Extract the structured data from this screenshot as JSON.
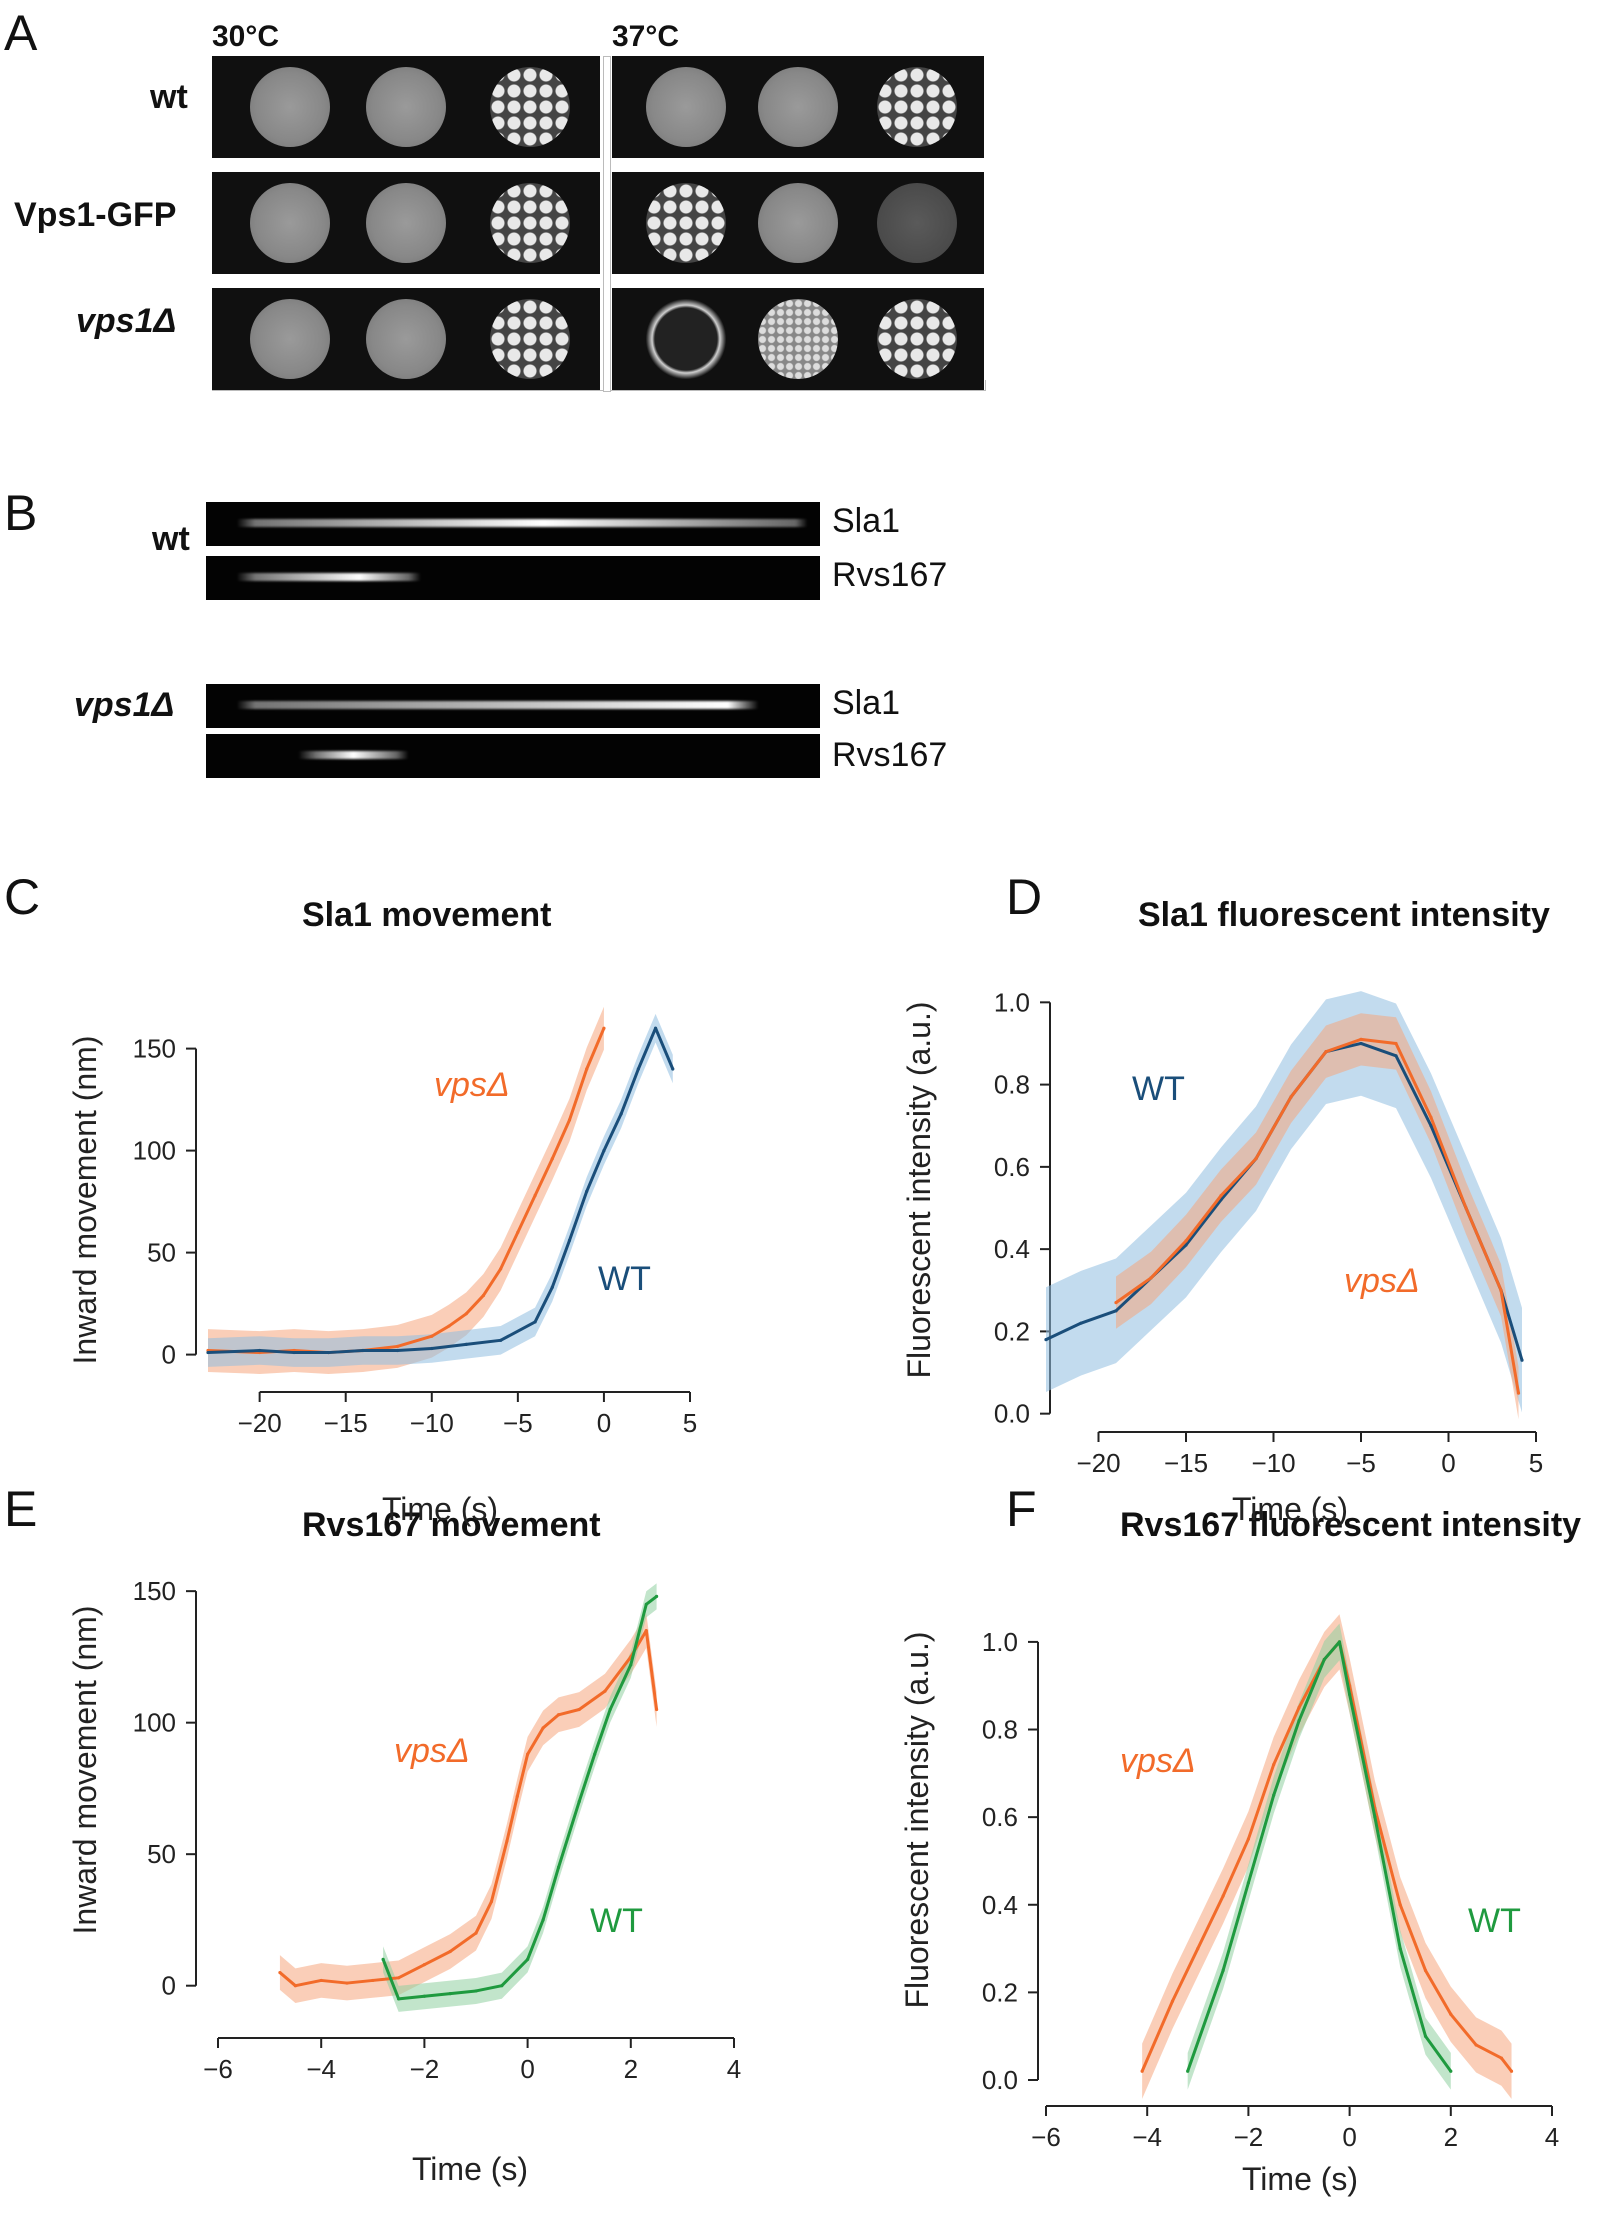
{
  "panel_letters": {
    "a": "A",
    "b": "B",
    "c": "C",
    "d": "D",
    "e": "E",
    "f": "F"
  },
  "panel_a": {
    "temps": [
      "30°C",
      "37°C"
    ],
    "strains": [
      "wt",
      "Vps1-GFP",
      "vps1Δ"
    ]
  },
  "panel_b": {
    "groups": [
      {
        "strain": "wt",
        "channels": [
          "Sla1",
          "Rvs167"
        ]
      },
      {
        "strain": "vps1Δ",
        "channels": [
          "Sla1",
          "Rvs167"
        ]
      }
    ]
  },
  "colors": {
    "vps": "#f26b2a",
    "wt_blue": "#1a4e7a",
    "wt_green": "#1f9a3f",
    "band_vps": "#f5a57e",
    "band_blue": "#8fbde0",
    "band_green": "#8fd0a0"
  },
  "chart_data": [
    {
      "panel": "C",
      "type": "line",
      "title": "Sla1 movement",
      "xlabel": "Time (s)",
      "ylabel": "Inward movement (nm)",
      "xticks": [
        -20,
        -15,
        -10,
        -5,
        0,
        5
      ],
      "yticks": [
        0,
        50,
        100,
        150
      ],
      "xlim": [
        -23,
        5
      ],
      "ylim": [
        -10,
        165
      ],
      "series": [
        {
          "name": "vpsΔ",
          "color": "#f26b2a",
          "x": [
            -23,
            -20,
            -18,
            -16,
            -14,
            -12,
            -10,
            -9,
            -8,
            -7,
            -6,
            -5,
            -4,
            -3,
            -2,
            -1,
            0
          ],
          "y": [
            2,
            1,
            2,
            1,
            2,
            4,
            9,
            14,
            20,
            29,
            42,
            60,
            78,
            96,
            115,
            140,
            160
          ]
        },
        {
          "name": "WT",
          "color": "#1a4e7a",
          "x": [
            -23,
            -20,
            -18,
            -16,
            -14,
            -12,
            -10,
            -8,
            -6,
            -4,
            -3,
            -2,
            -1,
            0,
            1,
            2,
            3,
            4
          ],
          "y": [
            1,
            2,
            1,
            1,
            2,
            2,
            3,
            5,
            7,
            16,
            33,
            56,
            80,
            100,
            118,
            140,
            160,
            140
          ]
        }
      ]
    },
    {
      "panel": "D",
      "type": "line",
      "title": "Sla1 fluorescent intensity",
      "xlabel": "Time (s)",
      "ylabel": "Fluorescent intensity (a.u.)",
      "xticks": [
        -20,
        -15,
        -10,
        -5,
        0,
        5
      ],
      "yticks": [
        0.0,
        0.2,
        0.4,
        0.6,
        0.8,
        1.0
      ],
      "xlim": [
        -23,
        5
      ],
      "ylim": [
        -0.03,
        1.03
      ],
      "series": [
        {
          "name": "WT",
          "color": "#1a4e7a",
          "x": [
            -23,
            -21,
            -19,
            -17,
            -15,
            -13,
            -11,
            -9,
            -7,
            -5,
            -3,
            -1,
            1,
            3,
            4.2
          ],
          "y": [
            0.18,
            0.22,
            0.25,
            0.33,
            0.41,
            0.52,
            0.62,
            0.77,
            0.88,
            0.9,
            0.87,
            0.7,
            0.5,
            0.3,
            0.13
          ]
        },
        {
          "name": "vpsΔ",
          "color": "#f26b2a",
          "x": [
            -19,
            -17,
            -15,
            -13,
            -11,
            -9,
            -7,
            -5,
            -3,
            -1,
            1,
            3,
            4
          ],
          "y": [
            0.27,
            0.33,
            0.42,
            0.53,
            0.62,
            0.77,
            0.88,
            0.91,
            0.9,
            0.72,
            0.5,
            0.3,
            0.05
          ]
        }
      ]
    },
    {
      "panel": "E",
      "type": "line",
      "title": "Rvs167 movement",
      "xlabel": "Time (s)",
      "ylabel": "Inward movement (nm)",
      "xticks": [
        -6,
        -4,
        -2,
        0,
        2,
        4
      ],
      "yticks": [
        0,
        50,
        100,
        150
      ],
      "xlim": [
        -6,
        4
      ],
      "ylim": [
        -10,
        155
      ],
      "series": [
        {
          "name": "vpsΔ",
          "color": "#f26b2a",
          "x": [
            -4.8,
            -4.5,
            -4,
            -3.5,
            -3,
            -2.5,
            -2,
            -1.5,
            -1,
            -0.7,
            -0.4,
            -0.2,
            0,
            0.3,
            0.6,
            1,
            1.5,
            2,
            2.3,
            2.5
          ],
          "y": [
            5,
            0,
            2,
            1,
            2,
            3,
            8,
            13,
            20,
            32,
            55,
            72,
            88,
            98,
            103,
            105,
            112,
            125,
            135,
            105
          ]
        },
        {
          "name": "WT",
          "color": "#1f9a3f",
          "x": [
            -2.8,
            -2.5,
            -2,
            -1.5,
            -1,
            -0.5,
            0,
            0.3,
            0.6,
            1,
            1.3,
            1.6,
            2,
            2.3,
            2.5
          ],
          "y": [
            10,
            -5,
            -4,
            -3,
            -2,
            0,
            10,
            25,
            45,
            70,
            88,
            105,
            122,
            145,
            148
          ]
        }
      ]
    },
    {
      "panel": "F",
      "type": "line",
      "title": "Rvs167 fluorescent intensity",
      "xlabel": "Time (s)",
      "ylabel": "Fluorescent intensity (a.u.)",
      "xticks": [
        -6,
        -4,
        -2,
        0,
        2,
        4
      ],
      "yticks": [
        0.0,
        0.2,
        0.4,
        0.6,
        0.8,
        1.0
      ],
      "xlim": [
        -6,
        4
      ],
      "ylim": [
        0,
        1.05
      ],
      "series": [
        {
          "name": "vpsΔ",
          "color": "#f26b2a",
          "x": [
            -4.1,
            -3.5,
            -3,
            -2.5,
            -2,
            -1.5,
            -1,
            -0.5,
            -0.2,
            0,
            0.5,
            1,
            1.5,
            2,
            2.5,
            3,
            3.2
          ],
          "y": [
            0.02,
            0.18,
            0.3,
            0.42,
            0.55,
            0.72,
            0.85,
            0.96,
            1.0,
            0.9,
            0.62,
            0.4,
            0.25,
            0.15,
            0.08,
            0.05,
            0.02
          ]
        },
        {
          "name": "WT",
          "color": "#1f9a3f",
          "x": [
            -3.2,
            -2.5,
            -2,
            -1.5,
            -1,
            -0.5,
            -0.2,
            0,
            0.5,
            1,
            1.5,
            2
          ],
          "y": [
            0.02,
            0.25,
            0.45,
            0.65,
            0.82,
            0.96,
            1.0,
            0.88,
            0.6,
            0.3,
            0.1,
            0.02
          ]
        }
      ]
    }
  ],
  "annotations": {
    "c_vps": "vpsΔ",
    "c_wt": "WT",
    "d_wt": "WT",
    "d_vps": "vpsΔ",
    "e_vps": "vpsΔ",
    "e_wt": "WT",
    "f_vps": "vpsΔ",
    "f_wt": "WT"
  }
}
